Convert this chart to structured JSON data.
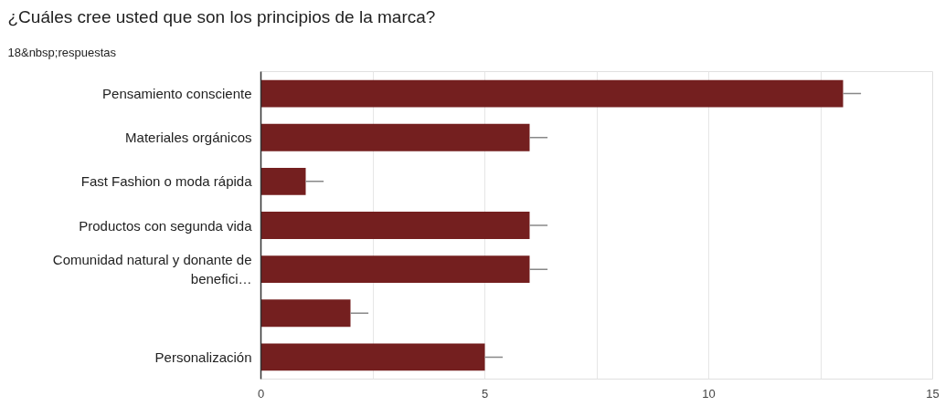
{
  "chart_data": {
    "type": "bar",
    "orientation": "horizontal",
    "title": "¿Cuáles cree usted que son los principios de la marca?",
    "subtitle": "18&nbsp;respuestas",
    "categories": [
      "Pensamiento consciente",
      "Materiales orgánicos",
      "Fast Fashion o moda rápida",
      "Productos con segunda vida",
      "Comunidad natural y donante de benefici…",
      null,
      "Personalización"
    ],
    "values": [
      13,
      6,
      1,
      6,
      6,
      2,
      5
    ],
    "errors": [
      [
        13,
        13.4
      ],
      [
        6,
        6.4
      ],
      [
        1,
        1.4
      ],
      [
        6,
        6.4
      ],
      [
        6,
        6.4
      ],
      [
        2,
        2.4
      ],
      [
        5,
        5.4
      ]
    ],
    "color": "#741f1f",
    "xlim": [
      0,
      15
    ],
    "xticks": [
      0,
      {
        "value": 2.5,
        "label": null
      },
      5,
      {
        "value": 7.5,
        "label": null
      },
      10,
      {
        "value": 12.5,
        "label": null
      },
      15
    ],
    "grid": "x"
  }
}
